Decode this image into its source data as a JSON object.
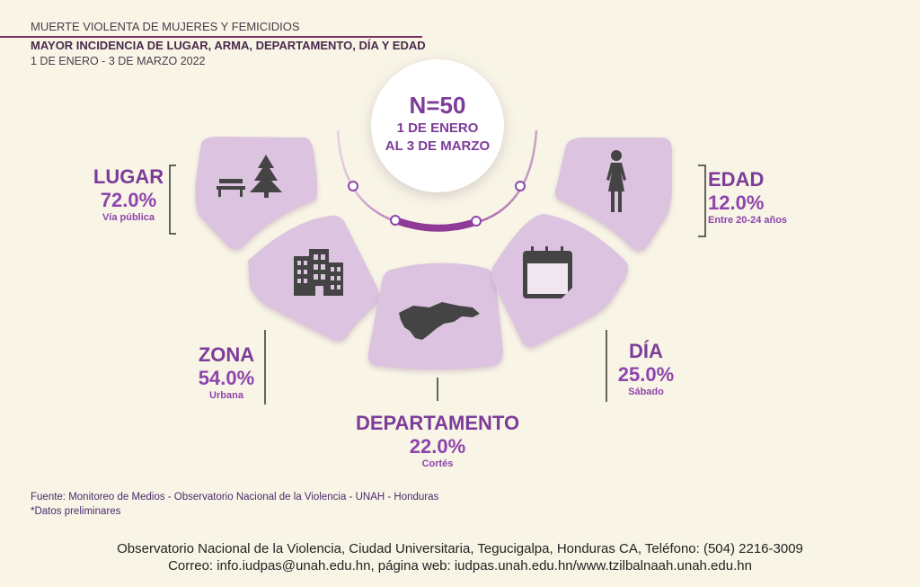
{
  "header": {
    "title": "MUERTE VIOLENTA DE MUJERES Y FEMICIDIOS",
    "subtitle": "MAYOR INCIDENCIA DE LUGAR, ARMA, DEPARTAMENTO, DÍA Y EDAD",
    "period": "1  DE ENERO - 3 DE MARZO 2022"
  },
  "center": {
    "n_label": "N=50",
    "line1": "1 DE ENERO",
    "line2": "AL 3 DE MARZO"
  },
  "categories": {
    "lugar": {
      "title": "LUGAR",
      "value": "72.0%",
      "detail": "Vía pública"
    },
    "zona": {
      "title": "ZONA",
      "value": "54.0%",
      "detail": "Urbana"
    },
    "departamento": {
      "title": "DEPARTAMENTO",
      "value": "22.0%",
      "detail": "Cortés"
    },
    "dia": {
      "title": "DÍA",
      "value": "25.0%",
      "detail": "Sábado"
    },
    "edad": {
      "title": "EDAD",
      "value": "12.0%",
      "detail": "Entre 20-24 años"
    }
  },
  "icons": [
    "bench-tree-icon",
    "building-icon",
    "honduras-map-icon",
    "calendar-icon",
    "woman-icon"
  ],
  "source": {
    "line1": "Fuente:  Monitoreo de Medios - Observatorio Nacional de la Violencia - UNAH - Honduras",
    "line2": "*Datos preliminares"
  },
  "footer": {
    "line1": "Observatorio Nacional de la Violencia, Ciudad Universitaria, Tegucigalpa, Honduras CA, Teléfono: (504) 2216-3009",
    "line2": "Correo: info.iudpas@unah.edu.hn, página web: iudpas.unah.edu.hn/www.tzilbalnaah.unah.edu.hn"
  },
  "colors": {
    "background": "#f8f5e6",
    "panel": "#dcc3df",
    "accent": "#8e44ad",
    "icon": "#444444",
    "header_line": "#7a2e5e"
  }
}
